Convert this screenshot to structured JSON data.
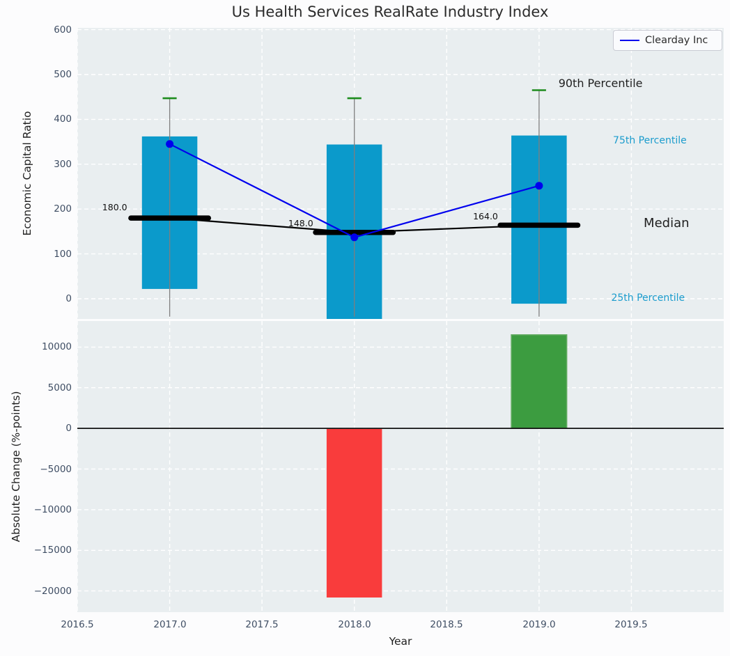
{
  "colors": {
    "panel_bg": "#e9eef0",
    "grid": "#ffffff",
    "box_fill": "#0b9acb",
    "whisker": "#7f7f7f",
    "p90_cap": "#1d8c1d",
    "median": "#000000",
    "series_line": "#0000ee",
    "bar_negative": "#f93c3c",
    "bar_positive": "#3c9c40",
    "bar_positive_edge": "#63ac62",
    "tick_text": "#3e4d63",
    "percentile_text": "#1b9ccd",
    "annotation_text": "#1f1f1f",
    "zero_line": "#111111"
  },
  "legend": {
    "label": "Clearday Inc"
  },
  "chart_data": [
    {
      "type": "box",
      "title": "Us Health Services RealRate Industry Index",
      "ylabel": "Economic Capital Ratio",
      "x": [
        2017,
        2018,
        2019
      ],
      "xlim": [
        2016.5,
        2020.0
      ],
      "ylim": [
        -45,
        604
      ],
      "grid": true,
      "legend_position": "upper right",
      "p90": [
        447,
        447,
        465
      ],
      "p75": [
        362,
        344,
        364
      ],
      "median": [
        180.0,
        148.0,
        164.0
      ],
      "p25": [
        22,
        -45,
        -11
      ],
      "whisker_low": [
        -40,
        -40,
        -40
      ],
      "series": [
        {
          "name": "Clearday Inc",
          "values": [
            345,
            137,
            252
          ]
        }
      ],
      "yticks": [
        {
          "v": 0,
          "label": "0"
        },
        {
          "v": 100,
          "label": "100"
        },
        {
          "v": 200,
          "label": "200"
        },
        {
          "v": 300,
          "label": "300"
        },
        {
          "v": 400,
          "label": "400"
        },
        {
          "v": 500,
          "label": "500"
        },
        {
          "v": 600,
          "label": "600"
        }
      ],
      "value_labels": [
        {
          "text": "180.0",
          "x": 2016.77,
          "y": 203,
          "align": "right"
        },
        {
          "text": "148.0",
          "x": 2017.71,
          "y": 168,
          "align": "center"
        },
        {
          "text": "164.0",
          "x": 2018.71,
          "y": 184,
          "align": "center"
        }
      ],
      "annotations": [
        {
          "text": "90th Percentile",
          "x": 2019.105,
          "y": 480,
          "align": "left",
          "color": "#1f1f1f",
          "size": 16
        },
        {
          "text": "75th Percentile",
          "x": 2019.6,
          "y": 353,
          "align": "center",
          "color": "#1b9ccd",
          "size": 14
        },
        {
          "text": "Median",
          "x": 2019.69,
          "y": 168,
          "align": "center",
          "color": "#1f1f1f",
          "size": 18
        },
        {
          "text": "25th Percentile",
          "x": 2019.59,
          "y": 2,
          "align": "center",
          "color": "#1b9ccd",
          "size": 14
        }
      ]
    },
    {
      "type": "bar",
      "ylabel": "Absolute Change (%-points)",
      "xlabel": "Year",
      "x": [
        2018,
        2019
      ],
      "values": [
        -20800,
        11500
      ],
      "xlim": [
        2016.5,
        2020.0
      ],
      "ylim": [
        -22600,
        13200
      ],
      "grid": true,
      "yticks": [
        {
          "v": 10000,
          "label": "10000"
        },
        {
          "v": 5000,
          "label": "5000"
        },
        {
          "v": 0,
          "label": "0"
        },
        {
          "v": -5000,
          "label": "−5000"
        },
        {
          "v": -10000,
          "label": "−10000"
        },
        {
          "v": -15000,
          "label": "−15000"
        },
        {
          "v": -20000,
          "label": "−20000"
        }
      ],
      "xticks": [
        {
          "v": 2016.5,
          "label": "2016.5"
        },
        {
          "v": 2017.0,
          "label": "2017.0"
        },
        {
          "v": 2017.5,
          "label": "2017.5"
        },
        {
          "v": 2018.0,
          "label": "2018.0"
        },
        {
          "v": 2018.5,
          "label": "2018.5"
        },
        {
          "v": 2019.0,
          "label": "2019.0"
        },
        {
          "v": 2019.5,
          "label": "2019.5"
        }
      ]
    }
  ]
}
